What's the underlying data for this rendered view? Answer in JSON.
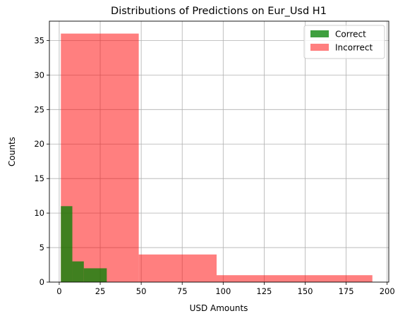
{
  "chart_data": {
    "type": "bar",
    "title": "Distributions of Predictions on Eur_Usd H1",
    "xlabel": "USD Amounts",
    "ylabel": "Counts",
    "xlim": [
      -6,
      201
    ],
    "ylim": [
      0,
      37.8
    ],
    "xticks": [
      0,
      25,
      50,
      75,
      100,
      125,
      150,
      175,
      200
    ],
    "yticks": [
      0,
      5,
      10,
      15,
      20,
      25,
      30,
      35
    ],
    "grid": true,
    "legend_position": "top-right",
    "series": [
      {
        "name": "Incorrect",
        "color": "#ff0000",
        "opacity": 0.5,
        "bins": [
          {
            "x0": 1,
            "x1": 48.5,
            "count": 36
          },
          {
            "x0": 48.5,
            "x1": 96,
            "count": 4
          },
          {
            "x0": 96,
            "x1": 191,
            "count": 1
          }
        ]
      },
      {
        "name": "Correct",
        "color": "#008000",
        "opacity": 0.75,
        "bins": [
          {
            "x0": 1,
            "x1": 8,
            "count": 11
          },
          {
            "x0": 8,
            "x1": 15,
            "count": 3
          },
          {
            "x0": 15,
            "x1": 29,
            "count": 2
          }
        ]
      }
    ]
  }
}
